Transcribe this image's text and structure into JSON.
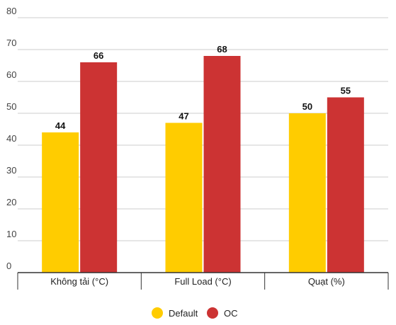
{
  "chart_data": {
    "type": "bar",
    "categories": [
      "Không tải (°C)",
      "Full Load (°C)",
      "Quạt (%)"
    ],
    "series": [
      {
        "name": "Default",
        "color": "#ffcc00",
        "values": [
          44,
          47,
          50
        ]
      },
      {
        "name": "OC",
        "color": "#cc3333",
        "values": [
          66,
          68,
          55
        ]
      }
    ],
    "ylim": [
      0,
      80
    ],
    "yticks": [
      0,
      10,
      20,
      30,
      40,
      50,
      60,
      70,
      80
    ],
    "grid": true,
    "data_labels": true,
    "legend_position": "bottom"
  }
}
